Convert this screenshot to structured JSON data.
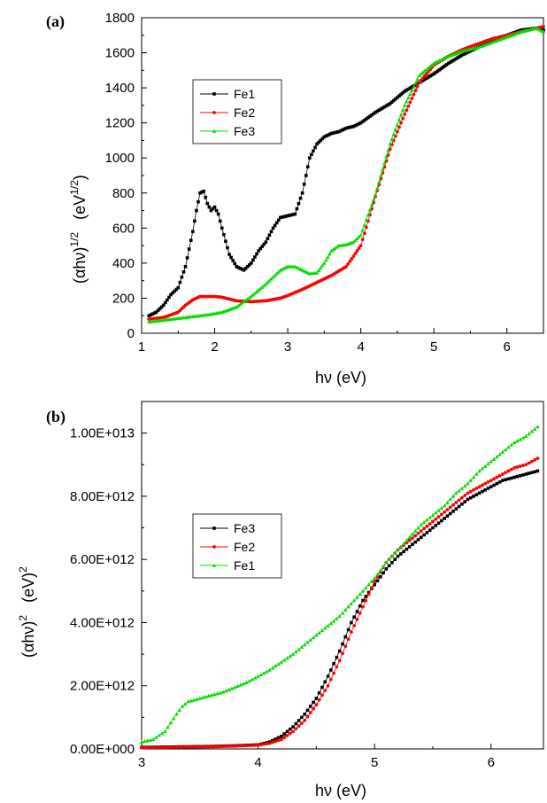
{
  "chart_data": [
    {
      "type": "line",
      "panel_label": "(a)",
      "xlabel": "hν  (eV)",
      "ylabel_main": "(αhν)",
      "ylabel_exp": "1/2",
      "ylabel_unit": "(eV",
      "ylabel_unit_exp": "1/2",
      "ylabel_unit_close": ")",
      "xlim": [
        1,
        6.5
      ],
      "ylim": [
        0,
        1800
      ],
      "x_ticks": [
        1,
        2,
        3,
        4,
        5,
        6
      ],
      "y_ticks": [
        0,
        200,
        400,
        600,
        800,
        1000,
        1200,
        1400,
        1600,
        1800
      ],
      "x_tick_labels": [
        "1",
        "2",
        "3",
        "4",
        "5",
        "6"
      ],
      "y_tick_labels": [
        "0",
        "200",
        "400",
        "600",
        "800",
        "1000",
        "1200",
        "1400",
        "1600",
        "1800"
      ],
      "legend_position": "upper-left",
      "series": [
        {
          "name": "Fe1",
          "color": "#000000",
          "marker": "square",
          "x": [
            1.1,
            1.2,
            1.3,
            1.4,
            1.5,
            1.6,
            1.7,
            1.75,
            1.8,
            1.85,
            1.9,
            1.95,
            2.0,
            2.05,
            2.1,
            2.2,
            2.3,
            2.4,
            2.5,
            2.6,
            2.7,
            2.8,
            2.9,
            3.0,
            3.1,
            3.2,
            3.3,
            3.4,
            3.5,
            3.6,
            3.7,
            3.8,
            3.9,
            4.0,
            4.2,
            4.4,
            4.6,
            4.8,
            5.0,
            5.2,
            5.4,
            5.6,
            5.8,
            6.0,
            6.2,
            6.4,
            6.5
          ],
          "y": [
            100,
            120,
            160,
            220,
            260,
            380,
            580,
            700,
            800,
            810,
            740,
            700,
            720,
            680,
            600,
            450,
            380,
            360,
            400,
            470,
            520,
            600,
            660,
            670,
            680,
            800,
            1000,
            1080,
            1120,
            1140,
            1150,
            1170,
            1180,
            1200,
            1260,
            1310,
            1380,
            1430,
            1480,
            1540,
            1590,
            1630,
            1670,
            1700,
            1730,
            1740,
            1730
          ]
        },
        {
          "name": "Fe2",
          "color": "#ff0000",
          "marker": "circle",
          "x": [
            1.1,
            1.3,
            1.5,
            1.6,
            1.7,
            1.8,
            1.9,
            2.0,
            2.1,
            2.2,
            2.3,
            2.5,
            2.7,
            2.9,
            3.0,
            3.2,
            3.4,
            3.6,
            3.8,
            4.0,
            4.2,
            4.4,
            4.6,
            4.8,
            5.0,
            5.2,
            5.4,
            5.6,
            5.8,
            6.0,
            6.2,
            6.4,
            6.5
          ],
          "y": [
            80,
            90,
            120,
            160,
            190,
            210,
            210,
            210,
            205,
            195,
            185,
            180,
            185,
            200,
            215,
            250,
            290,
            330,
            380,
            500,
            780,
            1050,
            1250,
            1430,
            1530,
            1580,
            1620,
            1650,
            1680,
            1700,
            1720,
            1740,
            1750
          ]
        },
        {
          "name": "Fe3",
          "color": "#00dd00",
          "marker": "triangle",
          "x": [
            1.1,
            1.3,
            1.5,
            1.7,
            1.9,
            2.1,
            2.3,
            2.5,
            2.7,
            2.8,
            2.9,
            3.0,
            3.1,
            3.2,
            3.3,
            3.4,
            3.5,
            3.6,
            3.7,
            3.8,
            3.9,
            4.0,
            4.2,
            4.4,
            4.6,
            4.8,
            5.0,
            5.2,
            5.4,
            5.6,
            5.8,
            6.0,
            6.2,
            6.4,
            6.5
          ],
          "y": [
            65,
            75,
            85,
            95,
            105,
            120,
            150,
            210,
            280,
            320,
            360,
            380,
            380,
            360,
            340,
            345,
            400,
            470,
            500,
            505,
            520,
            560,
            790,
            1080,
            1300,
            1470,
            1540,
            1580,
            1610,
            1630,
            1660,
            1690,
            1720,
            1740,
            1720
          ]
        }
      ]
    },
    {
      "type": "line",
      "panel_label": "(b)",
      "xlabel": "hν (eV)",
      "ylabel_main": "(αhν)",
      "ylabel_exp": "2",
      "ylabel_unit": "(eV)",
      "ylabel_unit_exp": "2",
      "xlim": [
        3,
        6.45
      ],
      "ylim": [
        0,
        11000000000000.0
      ],
      "x_ticks": [
        3,
        4,
        5,
        6
      ],
      "y_ticks": [
        0,
        2000000000000.0,
        4000000000000.0,
        6000000000000.0,
        8000000000000.0,
        10000000000000.0
      ],
      "x_tick_labels": [
        "3",
        "4",
        "5",
        "6"
      ],
      "y_tick_labels": [
        "0.00E+000",
        "2.00E+012",
        "4.00E+012",
        "6.00E+012",
        "8.00E+012",
        "1.00E+013"
      ],
      "legend_position": "center-left",
      "series": [
        {
          "name": "Fe3",
          "color": "#000000",
          "marker": "square",
          "x": [
            3.0,
            3.2,
            3.4,
            3.6,
            3.8,
            4.0,
            4.1,
            4.2,
            4.3,
            4.4,
            4.5,
            4.6,
            4.7,
            4.8,
            4.9,
            5.0,
            5.1,
            5.2,
            5.3,
            5.4,
            5.5,
            5.6,
            5.7,
            5.8,
            5.9,
            6.0,
            6.1,
            6.2,
            6.3,
            6.4
          ],
          "y": [
            50000000000.0,
            60000000000.0,
            70000000000.0,
            80000000000.0,
            100000000000.0,
            130000000000.0,
            220000000000.0,
            400000000000.0,
            700000000000.0,
            1100000000000.0,
            1600000000000.0,
            2300000000000.0,
            3100000000000.0,
            4000000000000.0,
            4700000000000.0,
            5200000000000.0,
            5700000000000.0,
            6100000000000.0,
            6400000000000.0,
            6700000000000.0,
            7000000000000.0,
            7300000000000.0,
            7600000000000.0,
            7900000000000.0,
            8100000000000.0,
            8300000000000.0,
            8500000000000.0,
            8600000000000.0,
            8700000000000.0,
            8800000000000.0
          ]
        },
        {
          "name": "Fe2",
          "color": "#ff0000",
          "marker": "circle",
          "x": [
            3.0,
            3.2,
            3.4,
            3.6,
            3.8,
            4.0,
            4.1,
            4.2,
            4.3,
            4.4,
            4.5,
            4.6,
            4.7,
            4.8,
            4.9,
            5.0,
            5.1,
            5.2,
            5.3,
            5.4,
            5.5,
            5.6,
            5.7,
            5.8,
            5.9,
            6.0,
            6.1,
            6.2,
            6.3,
            6.4
          ],
          "y": [
            40000000000.0,
            50000000000.0,
            60000000000.0,
            70000000000.0,
            90000000000.0,
            120000000000.0,
            180000000000.0,
            300000000000.0,
            550000000000.0,
            900000000000.0,
            1400000000000.0,
            2000000000000.0,
            2800000000000.0,
            3700000000000.0,
            4500000000000.0,
            5300000000000.0,
            5900000000000.0,
            6300000000000.0,
            6600000000000.0,
            6900000000000.0,
            7200000000000.0,
            7500000000000.0,
            7800000000000.0,
            8100000000000.0,
            8300000000000.0,
            8500000000000.0,
            8700000000000.0,
            8900000000000.0,
            9000000000000.0,
            9200000000000.0
          ]
        },
        {
          "name": "Fe1",
          "color": "#00dd00",
          "marker": "triangle",
          "x": [
            3.0,
            3.1,
            3.2,
            3.3,
            3.35,
            3.4,
            3.5,
            3.6,
            3.7,
            3.8,
            3.9,
            4.0,
            4.1,
            4.2,
            4.3,
            4.4,
            4.5,
            4.6,
            4.7,
            4.8,
            4.9,
            5.0,
            5.1,
            5.2,
            5.3,
            5.4,
            5.5,
            5.6,
            5.7,
            5.8,
            5.9,
            6.0,
            6.1,
            6.2,
            6.3,
            6.4
          ],
          "y": [
            220000000000.0,
            300000000000.0,
            550000000000.0,
            1100000000000.0,
            1350000000000.0,
            1500000000000.0,
            1600000000000.0,
            1700000000000.0,
            1800000000000.0,
            1950000000000.0,
            2100000000000.0,
            2300000000000.0,
            2500000000000.0,
            2750000000000.0,
            3000000000000.0,
            3300000000000.0,
            3600000000000.0,
            3900000000000.0,
            4200000000000.0,
            4600000000000.0,
            5000000000000.0,
            5400000000000.0,
            5900000000000.0,
            6300000000000.0,
            6700000000000.0,
            7100000000000.0,
            7400000000000.0,
            7700000000000.0,
            8100000000000.0,
            8400000000000.0,
            8800000000000.0,
            9100000000000.0,
            9400000000000.0,
            9700000000000.0,
            9900000000000.0,
            10200000000000.0
          ]
        }
      ]
    }
  ]
}
